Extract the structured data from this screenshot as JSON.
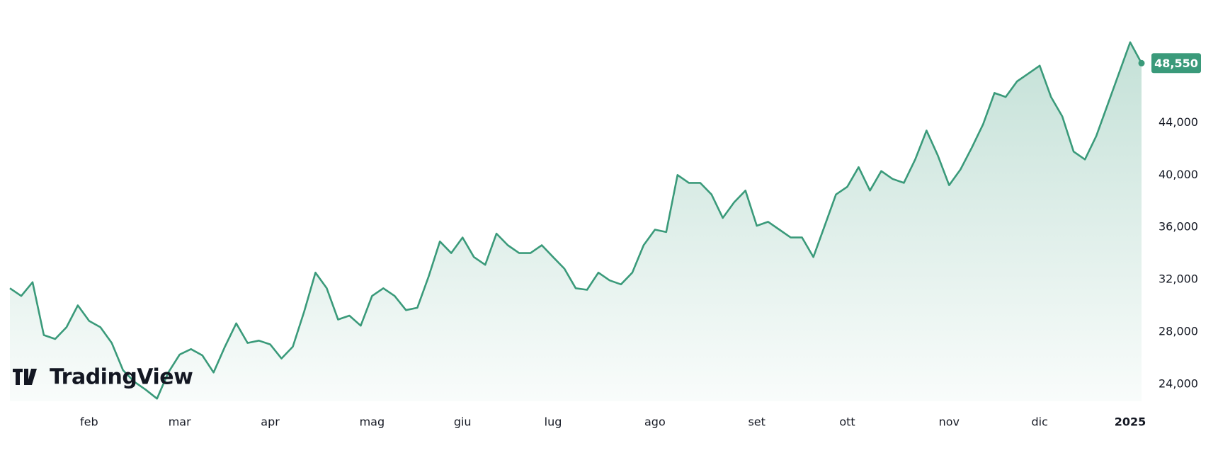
{
  "chart_data": {
    "type": "area",
    "watermark": "TradingView",
    "color": "#3a9a7a",
    "categories": [
      null,
      null,
      null,
      null,
      null,
      null,
      null,
      "feb",
      null,
      null,
      null,
      null,
      null,
      null,
      null,
      "mar",
      null,
      null,
      null,
      null,
      null,
      null,
      null,
      "apr",
      null,
      null,
      null,
      null,
      null,
      null,
      null,
      null,
      "mag",
      null,
      null,
      null,
      null,
      null,
      null,
      null,
      "giu",
      null,
      null,
      null,
      null,
      null,
      null,
      null,
      "lug",
      null,
      null,
      null,
      null,
      null,
      null,
      null,
      null,
      "ago",
      null,
      null,
      null,
      null,
      null,
      null,
      null,
      null,
      "set",
      null,
      null,
      null,
      null,
      null,
      null,
      null,
      "ott",
      null,
      null,
      null,
      null,
      null,
      null,
      null,
      null,
      "nov",
      null,
      null,
      null,
      null,
      null,
      null,
      null,
      "dic",
      null,
      null,
      null,
      null,
      null,
      null,
      null,
      "2025",
      null
    ],
    "values": [
      31340,
      30750,
      31800,
      27760,
      27460,
      28360,
      30030,
      28840,
      28360,
      27160,
      25070,
      24180,
      23580,
      22900,
      24900,
      26270,
      26690,
      26210,
      24900,
      26870,
      28660,
      27160,
      27340,
      27050,
      25970,
      26870,
      29550,
      32540,
      31340,
      28950,
      29250,
      28480,
      30750,
      31340,
      30750,
      29670,
      29850,
      32240,
      34920,
      34030,
      35220,
      33730,
      33130,
      35520,
      34630,
      34030,
      34030,
      34630,
      33730,
      32840,
      31340,
      31220,
      32540,
      31940,
      31640,
      32540,
      34630,
      35820,
      35640,
      40000,
      39400,
      39400,
      38510,
      36720,
      37910,
      38810,
      36120,
      36420,
      35820,
      35220,
      35220,
      33730,
      36120,
      38510,
      39100,
      40600,
      38810,
      40300,
      39700,
      39400,
      41190,
      43400,
      41490,
      39220,
      40420,
      42090,
      43880,
      46270,
      45970,
      47160,
      47760,
      48360,
      45970,
      44480,
      41790,
      41190,
      42980,
      45370,
      47760,
      50150,
      48550
    ],
    "value_labels": [
      null,
      null,
      null,
      null,
      null,
      null,
      null,
      null,
      null,
      null,
      null,
      null,
      null,
      null,
      null,
      null,
      null,
      null,
      null,
      null,
      null,
      null,
      null,
      null,
      null,
      null,
      null,
      null,
      null,
      null,
      null,
      null,
      null,
      null,
      null,
      null,
      null,
      null,
      null,
      null,
      null,
      null,
      null,
      null,
      null,
      null,
      null,
      null,
      null,
      null,
      null,
      null,
      null,
      null,
      null,
      null,
      null,
      null,
      null,
      null,
      null,
      null,
      null,
      null,
      null,
      null,
      null,
      null,
      null,
      null,
      null,
      null,
      null,
      null,
      null,
      null,
      null,
      null,
      null,
      null,
      null,
      null,
      null,
      null,
      null,
      null,
      null,
      null,
      null,
      null,
      null,
      null,
      null,
      null,
      null,
      null,
      null,
      null,
      null,
      null,
      "48,550"
    ],
    "ylim": [
      22700,
      51000
    ],
    "yticks": [
      {
        "value": 24000,
        "label": "24,000"
      },
      {
        "value": 28000,
        "label": "28,000"
      },
      {
        "value": 32000,
        "label": "32,000"
      },
      {
        "value": 36000,
        "label": "36,000"
      },
      {
        "value": 40000,
        "label": "40,000"
      },
      {
        "value": 44000,
        "label": "44,000"
      }
    ],
    "grid": false
  }
}
